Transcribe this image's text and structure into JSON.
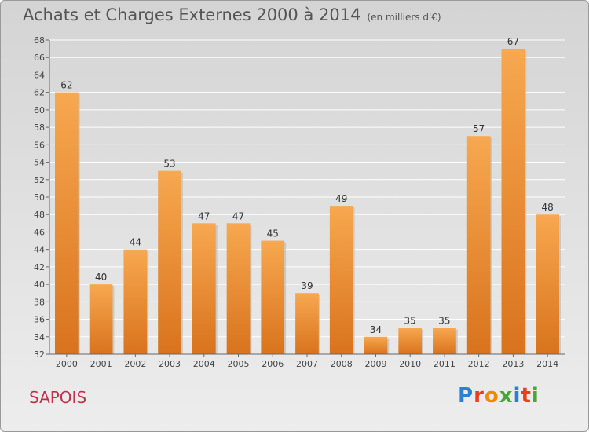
{
  "title": "Achats et Charges Externes 2000 à 2014",
  "subtitle": "(en milliers d'€)",
  "commune": "SAPOIS",
  "brand": {
    "text": "Proxiti",
    "letter_colors": [
      "#2e7fd0",
      "#e8401c",
      "#f08a00",
      "#46a832",
      "#2e7fd0",
      "#e8401c",
      "#46a832"
    ]
  },
  "colors": {
    "bar_top": "#f7a850",
    "bar_bottom": "#d9731d",
    "axis": "#666666",
    "grid": "#ffffff"
  },
  "chart_data": {
    "type": "bar",
    "title": "Achats et Charges Externes 2000 à 2014",
    "subtitle": "(en milliers d'€)",
    "xlabel": "",
    "ylabel": "",
    "ylim": [
      32,
      68
    ],
    "yticks": [
      32,
      34,
      36,
      38,
      40,
      42,
      44,
      46,
      48,
      50,
      52,
      54,
      56,
      58,
      60,
      62,
      64,
      66,
      68
    ],
    "grid": true,
    "categories": [
      "2000",
      "2001",
      "2002",
      "2003",
      "2004",
      "2005",
      "2006",
      "2007",
      "2008",
      "2009",
      "2010",
      "2011",
      "2012",
      "2013",
      "2014"
    ],
    "values": [
      62,
      40,
      44,
      53,
      47,
      47,
      45,
      39,
      49,
      34,
      35,
      35,
      57,
      67,
      48
    ]
  }
}
